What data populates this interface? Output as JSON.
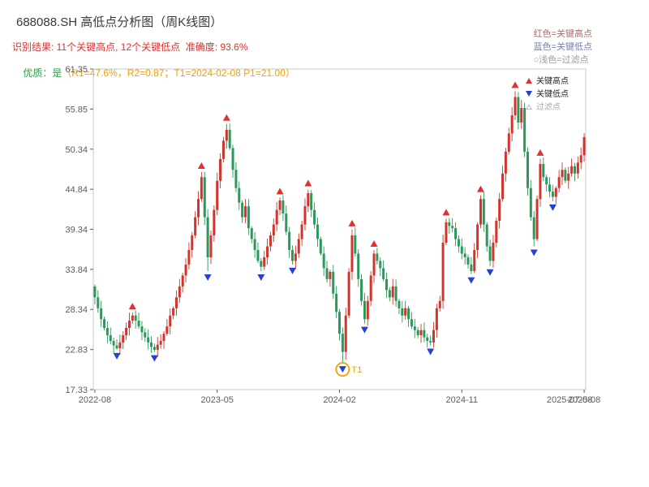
{
  "header": {
    "title": "688088.SH 高低点分析图（周K线图）",
    "legend_note": [
      {
        "text": "红色=关键高点",
        "color": "#b06a68"
      },
      {
        "text": "蓝色=关键低点",
        "color": "#7380b4"
      },
      {
        "text": "○浅色=过滤点",
        "color": "#9a9a9a"
      }
    ],
    "result_line": "识别结果: 11个关键高点, 12个关键低点  准确度: 93.6%",
    "result_color": "#e03131",
    "quality_label": "优质：是",
    "quality_label_color": "#2f9e44",
    "quality_detail": "（R1=47.6%，R2=0.87；T1=2024-02-08 P1=21.00）",
    "quality_detail_color": "#f59f00"
  },
  "chart_data": {
    "type": "candlestick",
    "title": "688088.SH 高低点分析图（周K线图）",
    "period": "weekly",
    "ylim": [
      17.33,
      61.35
    ],
    "y_tick_labels": [
      "17.33",
      "22.83",
      "28.34",
      "33.84",
      "39.34",
      "44.84",
      "50.34",
      "55.85",
      "61.35"
    ],
    "x_tick_labels": [
      "2022-08",
      "2023-05",
      "2024-02",
      "2024-11",
      "2025-08"
    ],
    "x_tick_indices": [
      0,
      39,
      78,
      117,
      156
    ],
    "x_end_overlap_label": "2025-07-08",
    "first_open": 31.5,
    "weekly_close": [
      30.0,
      28.5,
      27.0,
      25.8,
      24.8,
      24.0,
      23.4,
      23.0,
      23.8,
      24.8,
      25.8,
      26.8,
      27.5,
      26.8,
      26.0,
      25.2,
      24.5,
      23.8,
      23.2,
      22.8,
      23.5,
      24.0,
      25.0,
      26.0,
      27.5,
      28.5,
      30.0,
      31.5,
      33.0,
      34.5,
      36.5,
      38.5,
      41.0,
      43.5,
      46.5,
      41.0,
      35.5,
      38.5,
      42.0,
      46.0,
      49.0,
      51.5,
      53.0,
      50.5,
      47.5,
      45.0,
      43.0,
      41.0,
      42.5,
      39.5,
      38.0,
      36.5,
      35.0,
      34.2,
      35.5,
      37.0,
      38.5,
      40.0,
      42.0,
      43.3,
      41.5,
      39.0,
      36.5,
      35.0,
      36.0,
      38.0,
      40.0,
      42.5,
      44.3,
      42.0,
      40.0,
      38.0,
      36.0,
      34.0,
      32.5,
      33.5,
      30.5,
      28.0,
      25.0,
      22.5,
      27.5,
      33.5,
      38.5,
      36.0,
      32.5,
      29.5,
      27.0,
      29.5,
      33.0,
      36.0,
      35.0,
      34.0,
      32.5,
      31.0,
      30.0,
      31.5,
      29.5,
      28.5,
      27.5,
      28.5,
      27.0,
      26.0,
      25.5,
      24.8,
      25.5,
      24.5,
      24.0,
      23.8,
      25.5,
      28.5,
      29.5,
      37.5,
      40.3,
      39.8,
      39.5,
      38.0,
      37.0,
      36.0,
      35.5,
      34.5,
      33.6,
      36.5,
      40.0,
      43.5,
      40.0,
      37.0,
      35.0,
      37.5,
      40.5,
      43.5,
      47.0,
      50.0,
      52.5,
      55.0,
      57.5,
      54.0,
      56.0,
      50.0,
      45.0,
      41.0,
      38.0,
      43.5,
      48.3,
      46.5,
      45.5,
      44.5,
      43.8,
      45.0,
      46.5,
      47.5,
      46.0,
      47.0,
      48.0,
      47.0,
      48.5,
      49.5,
      52.0
    ],
    "key_highs": [
      {
        "index": 12,
        "price": 27.9
      },
      {
        "index": 34,
        "price": 47.2
      },
      {
        "index": 42,
        "price": 53.8
      },
      {
        "index": 59,
        "price": 43.7
      },
      {
        "index": 68,
        "price": 44.8
      },
      {
        "index": 82,
        "price": 39.3
      },
      {
        "index": 89,
        "price": 36.5
      },
      {
        "index": 112,
        "price": 40.8
      },
      {
        "index": 123,
        "price": 44.0
      },
      {
        "index": 134,
        "price": 58.3
      },
      {
        "index": 142,
        "price": 49.0
      }
    ],
    "key_lows": [
      {
        "index": 7,
        "price": 22.8
      },
      {
        "index": 19,
        "price": 22.5
      },
      {
        "index": 36,
        "price": 33.6
      },
      {
        "index": 53,
        "price": 33.6
      },
      {
        "index": 63,
        "price": 34.5
      },
      {
        "index": 79,
        "price": 21.0
      },
      {
        "index": 86,
        "price": 26.4
      },
      {
        "index": 107,
        "price": 23.4
      },
      {
        "index": 120,
        "price": 33.2
      },
      {
        "index": 126,
        "price": 34.3
      },
      {
        "index": 140,
        "price": 37.0
      },
      {
        "index": 146,
        "price": 43.2
      }
    ],
    "t1": {
      "index": 79,
      "price": 21.0,
      "label": "T1"
    },
    "legend": [
      {
        "label": "关键高点",
        "marker": "triangle-up",
        "color": "#e03131",
        "text_color": "#222222"
      },
      {
        "label": "关键低点",
        "marker": "triangle-down",
        "color": "#2741cf",
        "text_color": "#222222"
      },
      {
        "label": "过滤点",
        "marker": "triangle-hollow",
        "color": "#bbbbbb",
        "text_color": "#aaaaaa"
      }
    ],
    "colors": {
      "up": "#d0342c",
      "down": "#2a9959",
      "key_high": "#e03131",
      "key_low": "#2741cf",
      "t1": "#f59f00",
      "axis": "#5c5c5c",
      "spine": "#c9c9c9"
    }
  }
}
